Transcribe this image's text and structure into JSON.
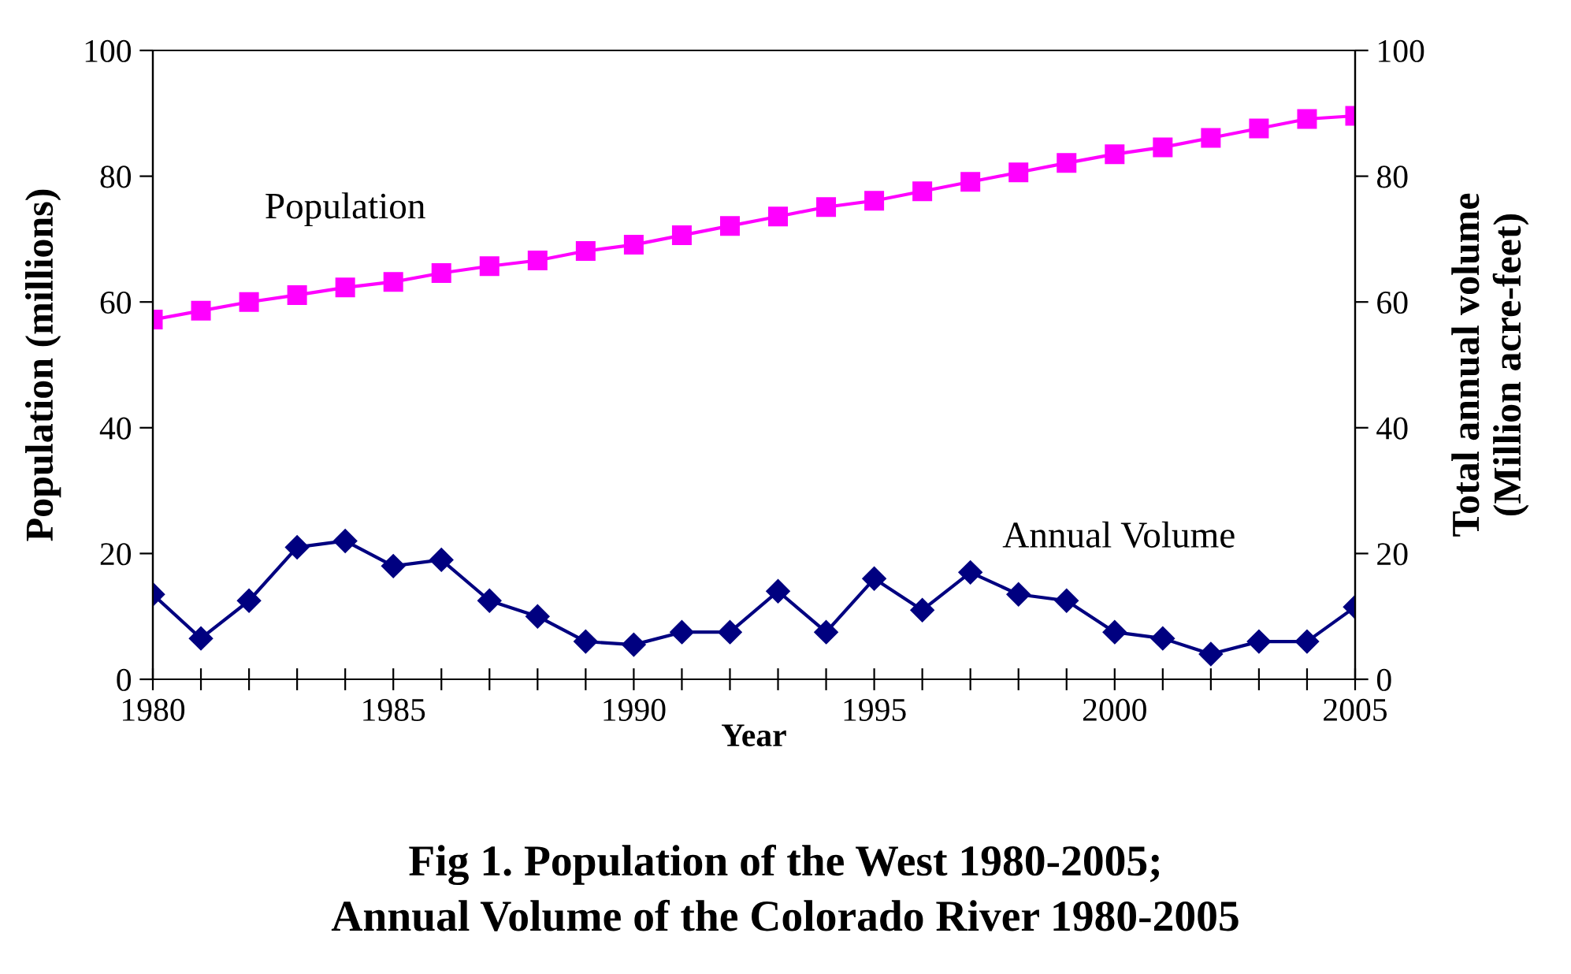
{
  "chart_data": {
    "type": "line",
    "title": "Fig 1. Population of the West 1980-2005;\nAnnual Volume of the Colorado River 1980-2005",
    "xlabel": "Year",
    "ylabel": "Population (millions)",
    "y2label": "Total annual volume\n(Million acre-feet)",
    "x": [
      1980,
      1981,
      1982,
      1983,
      1984,
      1985,
      1986,
      1987,
      1988,
      1989,
      1990,
      1991,
      1992,
      1993,
      1994,
      1995,
      1996,
      1997,
      1998,
      1999,
      2000,
      2001,
      2002,
      2003,
      2004,
      2005
    ],
    "series": [
      {
        "name": "Population",
        "color": "#ff00ff",
        "marker": "square",
        "values": [
          57.2,
          58.6,
          60,
          61.1,
          62.3,
          63.2,
          64.6,
          65.7,
          66.6,
          68.1,
          69.1,
          70.6,
          72.1,
          73.6,
          75.1,
          76.1,
          77.6,
          79.1,
          80.6,
          82.1,
          83.5,
          84.6,
          86.1,
          87.6,
          89.1,
          89.6
        ]
      },
      {
        "name": "Annual Volume",
        "color": "#000080",
        "marker": "diamond",
        "axis": "y2",
        "values": [
          13.5,
          6.5,
          12.5,
          21,
          22,
          18,
          19,
          12.5,
          10,
          6,
          5.5,
          7.5,
          7.5,
          14,
          7.5,
          16,
          11,
          17,
          13.5,
          12.5,
          7.5,
          6.5,
          4,
          6,
          6,
          11.5
        ]
      }
    ],
    "xlim": [
      1980,
      2005
    ],
    "xticks": [
      1980,
      {
        "value": 1981,
        "label": null
      },
      {
        "value": 1982,
        "label": null
      },
      {
        "value": 1983,
        "label": null
      },
      {
        "value": 1984,
        "label": null
      },
      1985,
      {
        "value": 1986,
        "label": null
      },
      {
        "value": 1987,
        "label": null
      },
      {
        "value": 1988,
        "label": null
      },
      {
        "value": 1989,
        "label": null
      },
      1990,
      {
        "value": 1991,
        "label": null
      },
      {
        "value": 1992,
        "label": null
      },
      {
        "value": 1993,
        "label": null
      },
      {
        "value": 1994,
        "label": null
      },
      1995,
      {
        "value": 1996,
        "label": null
      },
      {
        "value": 1997,
        "label": null
      },
      {
        "value": 1998,
        "label": null
      },
      {
        "value": 1999,
        "label": null
      },
      2000,
      {
        "value": 2001,
        "label": null
      },
      {
        "value": 2002,
        "label": null
      },
      {
        "value": 2003,
        "label": null
      },
      {
        "value": 2004,
        "label": null
      },
      2005
    ],
    "ylim": [
      0,
      100
    ],
    "yticks": [
      0,
      20,
      40,
      60,
      80,
      100
    ],
    "y2lim": [
      0,
      100
    ],
    "y2ticks": [
      0,
      20,
      40,
      60,
      80,
      100
    ],
    "grid": false,
    "legend": false,
    "line_style": "solid"
  }
}
